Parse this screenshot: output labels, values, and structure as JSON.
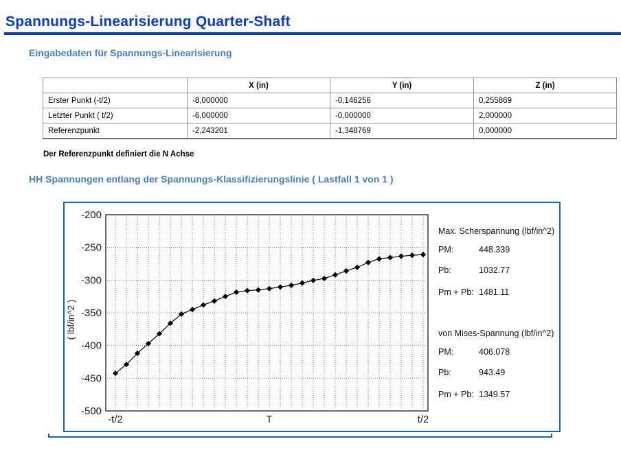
{
  "header": {
    "title": "Spannungs-Linearisierung Quarter-Shaft"
  },
  "sections": {
    "input_heading": "Eingabedaten für Spannungs-Linearisierung",
    "chart_heading": "HH Spannungen entlang der Spannungs-Klassifizierungslinie ( Lastfall 1 von 1 )"
  },
  "input_table": {
    "columns": [
      "",
      "X (in)",
      "Y (in)",
      "Z (in)"
    ],
    "rows": [
      {
        "label": "Erster Punkt (-t/2)",
        "values": [
          "-8,000000",
          "-0,146256",
          "0,255869"
        ]
      },
      {
        "label": "Letzter Punkt ( t/2)",
        "values": [
          "-6,000000",
          "-0,000000",
          "2,000000"
        ]
      },
      {
        "label": "Referenzpunkt",
        "values": [
          "-2,243201",
          "-1,348769",
          "0,000000"
        ]
      }
    ],
    "note": "Der Referenzpunkt definiert die N Achse"
  },
  "chart_data": {
    "type": "line",
    "title": "",
    "xlabel": "",
    "ylabel": "( lbf/in^2 )",
    "xticks": [
      "-t/2",
      "T",
      "t/2"
    ],
    "yticks": [
      -200,
      -250,
      -300,
      -350,
      -400,
      -450,
      -500
    ],
    "ylim": [
      -500,
      -200
    ],
    "grid": "dotted",
    "marker": "diamond",
    "line_color": "#000000",
    "values": [
      -442.5,
      -429,
      -412,
      -397,
      -382,
      -366,
      -352,
      -345,
      -338,
      -332,
      -325,
      -318.5,
      -316,
      -315,
      -313,
      -310.5,
      -308,
      -304.5,
      -300.5,
      -297.5,
      -292,
      -286,
      -280.5,
      -273,
      -267.5,
      -265.5,
      -263.5,
      -262,
      -261
    ],
    "side_panel": {
      "blocks": [
        {
          "title": "Max. Scherspannung (lbf/in^2)",
          "rows": [
            {
              "label": "PM:",
              "value": "448.339"
            },
            {
              "label": "Pb:",
              "value": "1032.77"
            },
            {
              "label": "Pm + Pb:",
              "value": "1481.11"
            }
          ]
        },
        {
          "title": "von Mises-Spannung (lbf/in^2)",
          "rows": [
            {
              "label": "PM:",
              "value": "406.078"
            },
            {
              "label": "Pb:",
              "value": "943.49"
            },
            {
              "label": "Pm + Pb:",
              "value": "1349.57"
            }
          ]
        }
      ]
    }
  },
  "colors": {
    "title_blue": "#0a3cc2",
    "heading_blue": "#4680be",
    "chart_border_blue": "#1464b4",
    "table_border_gray": "#919191",
    "grid_gray": "#808080",
    "series_black": "#000000"
  }
}
